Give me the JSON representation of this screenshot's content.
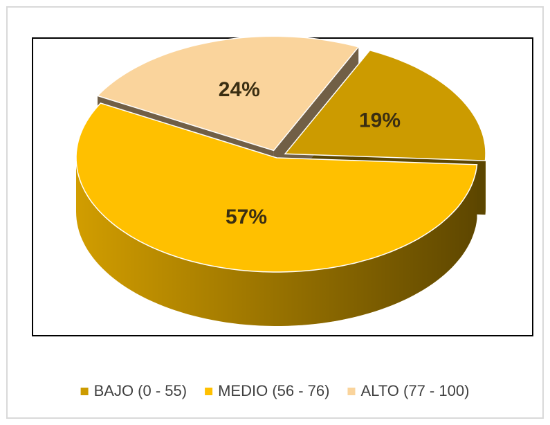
{
  "chart_data": {
    "type": "pie",
    "categories": [
      "BAJO (0 - 55)",
      "MEDIO (56 - 76)",
      "ALTO (77 - 100)"
    ],
    "values": [
      19,
      57,
      24
    ],
    "value_labels": [
      "19%",
      "57%",
      "24%"
    ],
    "colors": [
      "#cc9b00",
      "#ffc000",
      "#fad49c"
    ],
    "legend": "bottom"
  }
}
